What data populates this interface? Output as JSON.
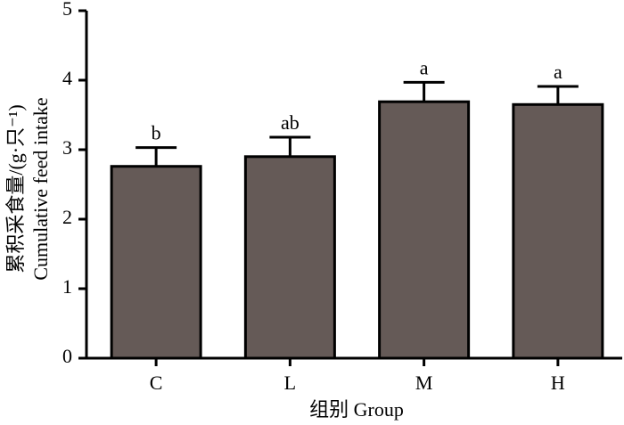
{
  "chart_data": {
    "type": "bar",
    "y_label_lines": [
      "累积采食量/(g·只⁻¹)",
      "Cumulative feed intake"
    ],
    "x_label": "组别 Group",
    "categories": [
      "C",
      "L",
      "M",
      "H"
    ],
    "values": [
      2.76,
      2.9,
      3.69,
      3.65
    ],
    "errors": [
      0.27,
      0.28,
      0.28,
      0.26
    ],
    "annotations": [
      "b",
      "ab",
      "a",
      "a"
    ],
    "color": "#655a57",
    "ylim": [
      0,
      5
    ],
    "yticks": [
      0,
      1,
      2,
      3,
      4,
      5
    ],
    "grid": false
  }
}
